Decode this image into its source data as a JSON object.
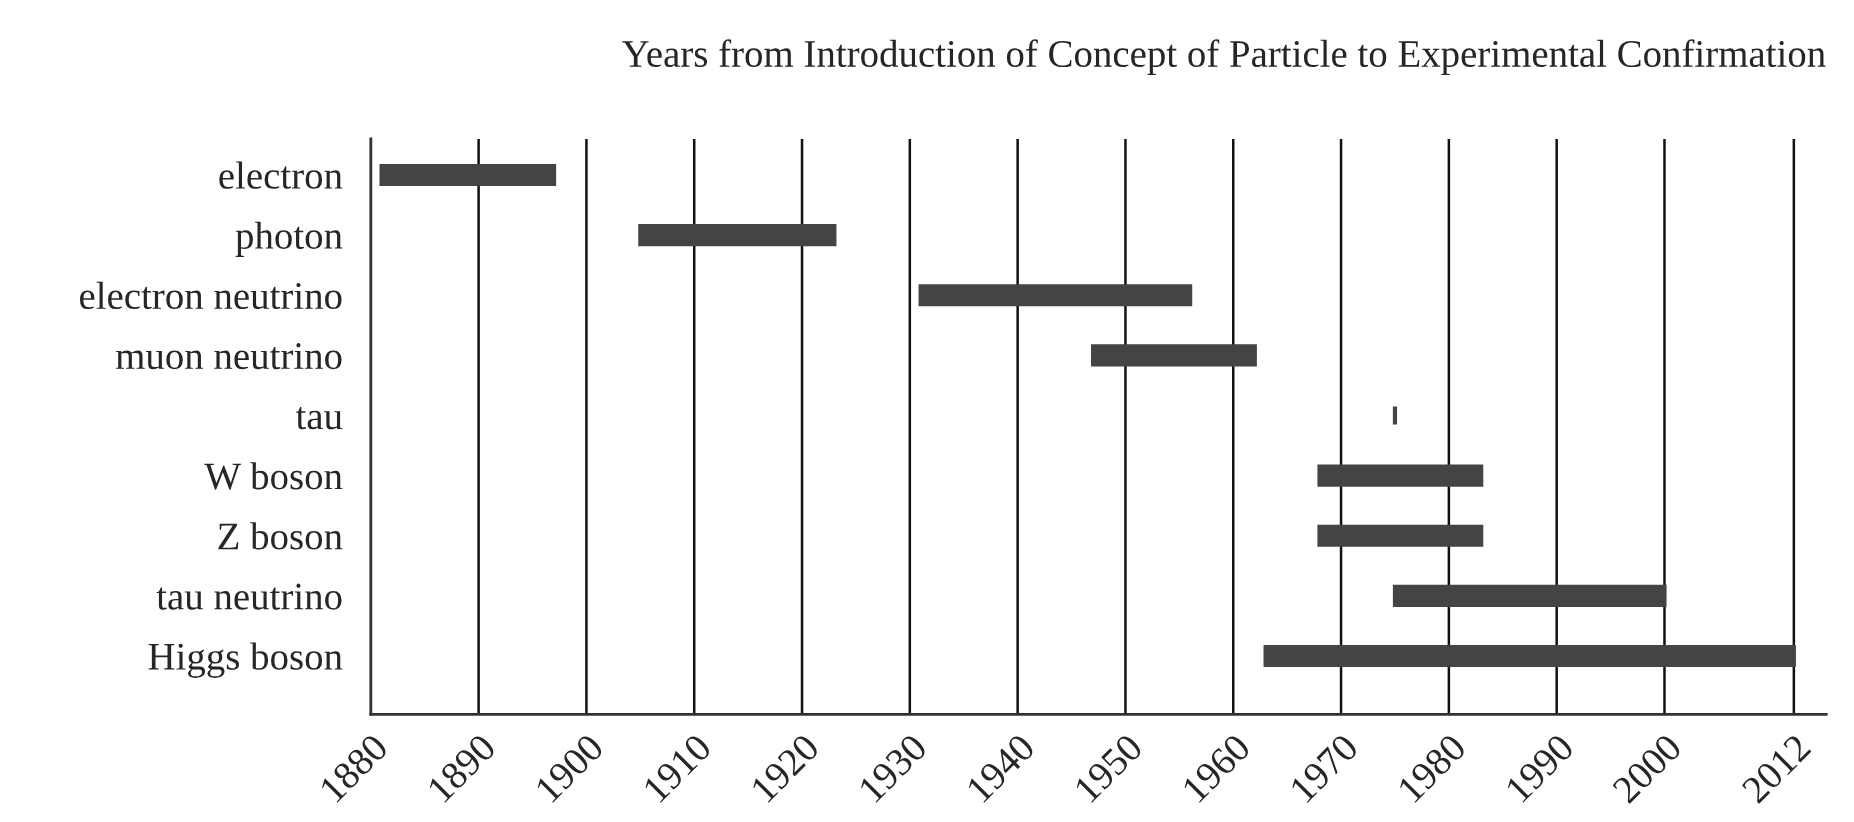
{
  "chart_data": {
    "type": "bar",
    "orientation": "horizontal",
    "title": "Years from Introduction of Concept of Particle to Experimental Confirmation",
    "categories": [
      "electron",
      "photon",
      "electron neutrino",
      "muon neutrino",
      "tau",
      "W boson",
      "Z boson",
      "tau neutrino",
      "Higgs boson"
    ],
    "base": [
      1881,
      1905,
      1931,
      1947,
      1975,
      1968,
      1968,
      1975,
      1963
    ],
    "values": [
      16,
      18,
      25,
      15,
      0,
      15,
      15,
      25,
      49
    ],
    "color": "#444444",
    "xlim": [
      1880,
      2015
    ],
    "xticks": [
      1880,
      1890,
      1900,
      1910,
      1920,
      1930,
      1940,
      1950,
      1960,
      1970,
      1980,
      1990,
      2000,
      2012
    ],
    "grid": "x"
  }
}
